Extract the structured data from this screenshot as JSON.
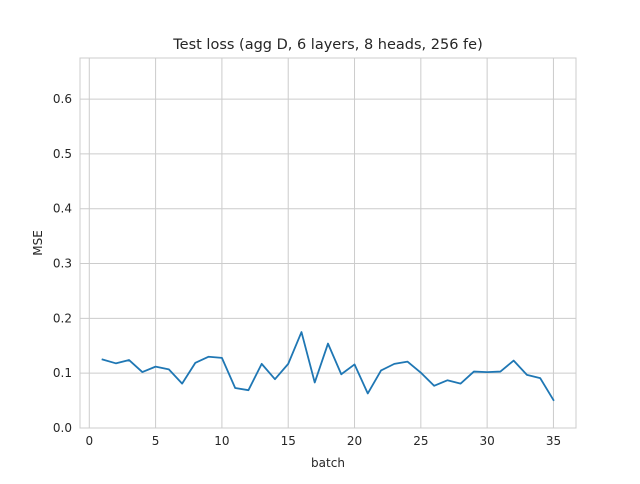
{
  "chart_data": {
    "type": "line",
    "title": "Test loss (agg D, 6 layers, 8 heads, 256 fe)",
    "xlabel": "batch",
    "ylabel": "MSE",
    "xlim": [
      -0.7,
      36.7
    ],
    "ylim": [
      0.0,
      0.675
    ],
    "xticks": [
      0,
      5,
      10,
      15,
      20,
      25,
      30,
      35
    ],
    "yticks": [
      0.0,
      0.1,
      0.2,
      0.3,
      0.4,
      0.5,
      0.6
    ],
    "ytick_labels": [
      "0.0",
      "0.1",
      "0.2",
      "0.3",
      "0.4",
      "0.5",
      "0.6"
    ],
    "grid": true,
    "style": "seaborn-whitegrid",
    "series": [
      {
        "color": "#1f77b4",
        "x": [
          1,
          2,
          3,
          4,
          5,
          6,
          7,
          8,
          9,
          10,
          11,
          12,
          13,
          14,
          15,
          16,
          17,
          18,
          19,
          20,
          21,
          22,
          23,
          24,
          25,
          26,
          27,
          28,
          29,
          30,
          31,
          32,
          33,
          34,
          35
        ],
        "y": [
          0.125,
          0.118,
          0.124,
          0.102,
          0.112,
          0.107,
          0.081,
          0.119,
          0.13,
          0.128,
          0.073,
          0.069,
          0.117,
          0.089,
          0.117,
          0.175,
          0.083,
          0.154,
          0.098,
          0.116,
          0.063,
          0.105,
          0.117,
          0.121,
          0.101,
          0.077,
          0.087,
          0.081,
          0.103,
          0.102,
          0.103,
          0.123,
          0.097,
          0.091,
          0.051
        ]
      }
    ]
  }
}
